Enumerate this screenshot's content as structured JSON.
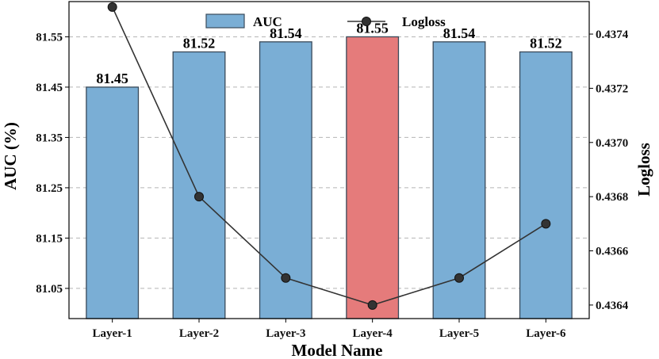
{
  "chart_data": {
    "type": "bar",
    "categories": [
      "Layer-1",
      "Layer-2",
      "Layer-3",
      "Layer-4",
      "Layer-5",
      "Layer-6"
    ],
    "series": [
      {
        "name": "AUC",
        "type": "bar",
        "axis": "left",
        "values": [
          81.45,
          81.52,
          81.54,
          81.55,
          81.54,
          81.52
        ],
        "labels": [
          "81.45",
          "81.52",
          "81.54",
          "81.55",
          "81.54",
          "81.52"
        ],
        "color": "#7aaed5",
        "highlight_index": 3,
        "highlight_color": "#e57b7b"
      },
      {
        "name": "Logloss",
        "type": "line",
        "axis": "right",
        "values": [
          0.4375,
          0.4368,
          0.4365,
          0.4364,
          0.4365,
          0.4367
        ],
        "color": "#333333"
      }
    ],
    "xlabel": "Model Name",
    "ylabel": "AUC (%)",
    "y2label": "Logloss",
    "ylim": [
      80.99,
      81.62
    ],
    "y2lim": [
      0.43635,
      0.43752
    ],
    "yticks": [
      "81.05",
      "81.15",
      "81.25",
      "81.35",
      "81.45",
      "81.55"
    ],
    "y2ticks": [
      "0.4364",
      "0.4366",
      "0.4368",
      "0.4370",
      "0.4372",
      "0.4374"
    ],
    "grid": "horizontal dashed",
    "legend": {
      "placement": "top-center",
      "entries": [
        "AUC",
        "Logloss"
      ]
    }
  }
}
